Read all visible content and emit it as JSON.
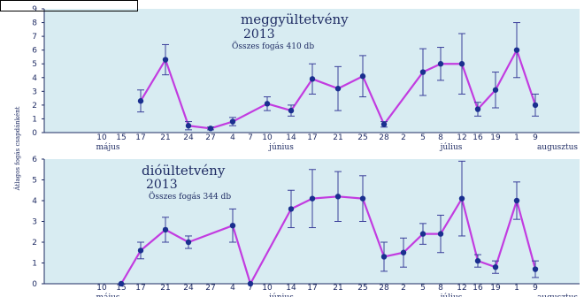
{
  "y_axis_label": "Átlagos fogás csapdánként",
  "colors": {
    "background": "#d8ecf2",
    "line": "#c23ce0",
    "marker": "#1a2f8f",
    "errorbar": "#3a3f9a",
    "axis": "#1e2b63",
    "text": "#1e2b63"
  },
  "chart_data": [
    {
      "type": "line",
      "title": "meggyültetvény",
      "year": "2013",
      "subtitle": "Összes fogás 410 db",
      "ylim": [
        0,
        9
      ],
      "yticks": [
        "0",
        "1",
        "2",
        "3",
        "4",
        "5",
        "6",
        "7",
        "8",
        "9"
      ],
      "grid": false,
      "x_ticks": [
        "10",
        "15",
        "17",
        "21",
        "24",
        "27",
        "4",
        "7",
        "10",
        "14",
        "17",
        "21",
        "25",
        "28",
        "2",
        "5",
        "8",
        "12",
        "16",
        "19",
        "1",
        "9"
      ],
      "months": [
        "május",
        "június",
        "július",
        "augusztus"
      ],
      "series": [
        {
          "points": [
            {
              "x": "17",
              "y": 2.3,
              "err": 0.8
            },
            {
              "x": "21",
              "y": 5.3,
              "err": 1.1
            },
            {
              "x": "24",
              "y": 0.5,
              "err": 0.3
            },
            {
              "x": "27",
              "y": 0.3,
              "err": 0.1
            },
            {
              "x": "4",
              "y": 0.8,
              "err": 0.3
            },
            {
              "x": "10",
              "y": 2.1,
              "err": 0.5
            },
            {
              "x": "14",
              "y": 1.6,
              "err": 0.4
            },
            {
              "x": "17",
              "y": 3.9,
              "err": 1.1
            },
            {
              "x": "21",
              "y": 3.2,
              "err": 1.6
            },
            {
              "x": "25",
              "y": 4.1,
              "err": 1.5
            },
            {
              "x": "28",
              "y": 0.6,
              "err": 0.2
            },
            {
              "x": "5",
              "y": 4.4,
              "err": 1.7
            },
            {
              "x": "8",
              "y": 5.0,
              "err": 1.2
            },
            {
              "x": "12",
              "y": 5.0,
              "err": 2.2
            },
            {
              "x": "16",
              "y": 1.7,
              "err": 0.5
            },
            {
              "x": "19",
              "y": 3.1,
              "err": 1.3
            },
            {
              "x": "1",
              "y": 6.0,
              "err": 2.0
            },
            {
              "x": "9",
              "y": 2.0,
              "err": 0.8
            }
          ]
        }
      ]
    },
    {
      "type": "line",
      "title": "dióültetvény",
      "year": "2013",
      "subtitle": "Összes fogás 344 db",
      "ylim": [
        0,
        6
      ],
      "yticks": [
        "0",
        "1",
        "2",
        "3",
        "4",
        "5",
        "6"
      ],
      "grid": false,
      "x_ticks": [
        "10",
        "15",
        "17",
        "21",
        "24",
        "27",
        "4",
        "7",
        "10",
        "14",
        "17",
        "21",
        "25",
        "28",
        "2",
        "5",
        "8",
        "12",
        "16",
        "19",
        "1",
        "9"
      ],
      "months": [
        "május",
        "június",
        "július",
        "augusztus"
      ],
      "series": [
        {
          "points": [
            {
              "x": "15",
              "y": 0.0,
              "err": 0.0
            },
            {
              "x": "17",
              "y": 1.6,
              "err": 0.4
            },
            {
              "x": "21",
              "y": 2.6,
              "err": 0.6
            },
            {
              "x": "24",
              "y": 2.0,
              "err": 0.3
            },
            {
              "x": "4",
              "y": 2.8,
              "err": 0.8
            },
            {
              "x": "7",
              "y": 0.0,
              "err": 0.0
            },
            {
              "x": "14",
              "y": 3.6,
              "err": 0.9
            },
            {
              "x": "17",
              "y": 4.1,
              "err": 1.4
            },
            {
              "x": "21",
              "y": 4.2,
              "err": 1.2
            },
            {
              "x": "25",
              "y": 4.1,
              "err": 1.1
            },
            {
              "x": "28",
              "y": 1.3,
              "err": 0.7
            },
            {
              "x": "2",
              "y": 1.5,
              "err": 0.7
            },
            {
              "x": "5",
              "y": 2.4,
              "err": 0.5
            },
            {
              "x": "8",
              "y": 2.4,
              "err": 0.9
            },
            {
              "x": "12",
              "y": 4.1,
              "err": 1.8
            },
            {
              "x": "16",
              "y": 1.1,
              "err": 0.3
            },
            {
              "x": "19",
              "y": 0.8,
              "err": 0.3
            },
            {
              "x": "1",
              "y": 4.0,
              "err": 0.9
            },
            {
              "x": "9",
              "y": 0.7,
              "err": 0.4
            }
          ]
        }
      ]
    }
  ]
}
